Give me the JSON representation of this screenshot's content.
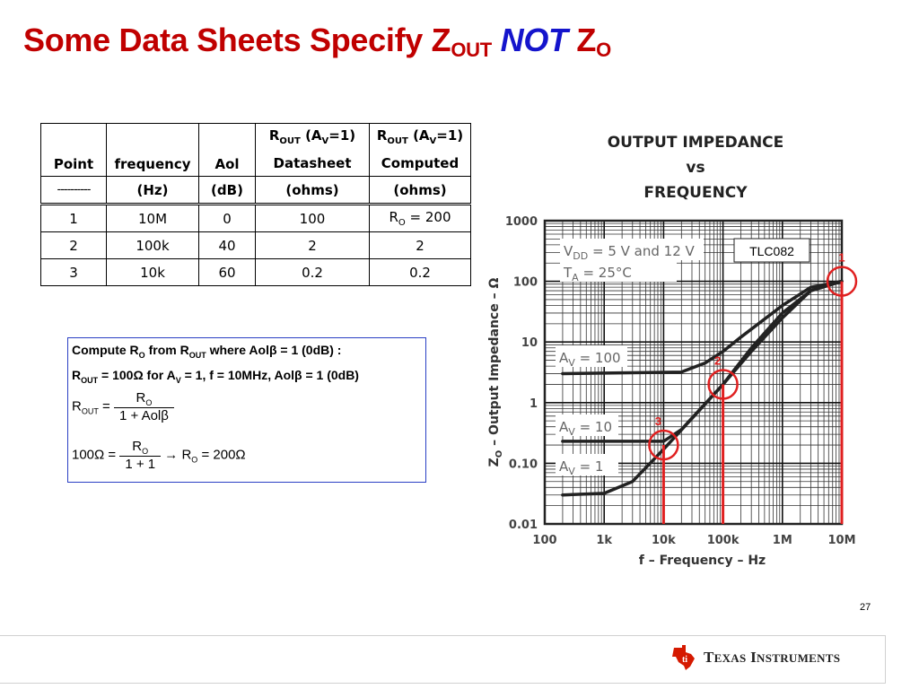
{
  "slide": {
    "title_prefix": "Some Data Sheets Specify Z",
    "title_sub1": "OUT",
    "title_not": "NOT",
    "title_z": "Z",
    "title_sub2": "O",
    "page_number": "27",
    "logo_text": "Texas Instruments",
    "colors": {
      "title": "#c00000",
      "not": "#1414cc",
      "marker": "#e02020",
      "box_border": "#2a3fc4"
    }
  },
  "table": {
    "headers": {
      "point": "Point",
      "frequency": "frequency",
      "aol": "Aol",
      "rout_ds_line1": "R",
      "rout_ds_sub": "OUT",
      "rout_ds_av": " (A",
      "rout_ds_av_sub": "V",
      "rout_ds_av_end": "=1)",
      "rout_ds_line2": "Datasheet",
      "rout_comp_line2": "Computed",
      "dashes": "----------",
      "unit_freq": "(Hz)",
      "unit_aol": "(dB)",
      "unit_ds": "(ohms)",
      "unit_comp": "(ohms)"
    },
    "rows": [
      {
        "point": "1",
        "frequency": "10M",
        "aol": "0",
        "datasheet": "100",
        "computed_r": "R",
        "computed_sub": "O",
        "computed_rest": " = 200"
      },
      {
        "point": "2",
        "frequency": "100k",
        "aol": "40",
        "datasheet": "2",
        "computed": "2"
      },
      {
        "point": "3",
        "frequency": "10k",
        "aol": "60",
        "datasheet": "0.2",
        "computed": "0.2"
      }
    ]
  },
  "calc": {
    "line1_a": "Compute R",
    "line1_a_sub": "O",
    "line1_b": " from R",
    "line1_b_sub": "OUT",
    "line1_c": " where Aolβ = 1 (0dB) :",
    "line2_a": "R",
    "line2_a_sub": "OUT",
    "line2_b": " = 100Ω for A",
    "line2_b_sub": "V",
    "line2_c": " = 1, f = 10MHz, Aolβ = 1 (0dB)",
    "eq1_lhs": "R",
    "eq1_lhs_sub": "OUT",
    "eq1_eq": " = ",
    "eq1_num": "R",
    "eq1_num_sub": "O",
    "eq1_den": "1 + Aolβ",
    "eq2_lhs": "100Ω = ",
    "eq2_num": "R",
    "eq2_num_sub": "O",
    "eq2_den": "1 + 1",
    "eq2_rhs_a": " → R",
    "eq2_rhs_sub": "O",
    "eq2_rhs_b": " = 200Ω"
  },
  "chart_title": {
    "line1": "OUTPUT IMPEDANCE",
    "line2": "vs",
    "line3": "FREQUENCY"
  },
  "chart_data": {
    "type": "line",
    "title": "OUTPUT IMPEDANCE vs FREQUENCY",
    "xlabel": "f – Frequency – Hz",
    "ylabel": "Z",
    "ylabel_sub": "O",
    "ylabel_rest": " – Output Impedance – Ω",
    "x_scale": "log",
    "y_scale": "log",
    "xlim": [
      100,
      10000000
    ],
    "ylim": [
      0.01,
      1000
    ],
    "x_ticks": [
      100,
      1000,
      10000,
      100000,
      1000000,
      10000000
    ],
    "x_tick_labels": [
      "100",
      "1k",
      "10k",
      "100k",
      "1M",
      "10M"
    ],
    "y_ticks": [
      0.01,
      0.1,
      1,
      10,
      100,
      1000
    ],
    "y_tick_labels": [
      "0.01",
      "0.10",
      "1",
      "10",
      "100",
      "1000"
    ],
    "grid": true,
    "series": [
      {
        "name": "AV = 100",
        "points": [
          [
            200,
            3
          ],
          [
            20000,
            3.2
          ],
          [
            50000,
            4.5
          ],
          [
            100000,
            7
          ],
          [
            200000,
            12
          ],
          [
            1000000,
            40
          ],
          [
            3000000,
            80
          ],
          [
            10000000,
            100
          ]
        ]
      },
      {
        "name": "AV = 10",
        "points": [
          [
            200,
            0.23
          ],
          [
            10000,
            0.23
          ],
          [
            20000,
            0.36
          ],
          [
            100000,
            2
          ],
          [
            300000,
            8
          ],
          [
            1000000,
            30
          ],
          [
            3000000,
            70
          ],
          [
            10000000,
            100
          ]
        ]
      },
      {
        "name": "AV = 1",
        "points": [
          [
            200,
            0.03
          ],
          [
            1000,
            0.032
          ],
          [
            3000,
            0.05
          ],
          [
            10000,
            0.17
          ],
          [
            30000,
            0.55
          ],
          [
            100000,
            2
          ],
          [
            300000,
            7
          ],
          [
            1000000,
            25
          ],
          [
            3000000,
            70
          ],
          [
            10000000,
            100
          ]
        ]
      }
    ],
    "annotations": {
      "conditions_line1_a": "V",
      "conditions_line1_sub": "DD",
      "conditions_line1_b": " = 5 V and 12 V",
      "conditions_line2_a": "T",
      "conditions_line2_sub": "A",
      "conditions_line2_b": " = 25°C",
      "device": "TLC082",
      "label_av100": "A",
      "label_av100_sub": "V",
      "label_av100_rest": " = 100",
      "label_av10": "A",
      "label_av10_sub": "V",
      "label_av10_rest": " = 10",
      "label_av1": "A",
      "label_av1_sub": "V",
      "label_av1_rest": " = 1"
    },
    "markers": [
      {
        "label": "1",
        "x": 10000000,
        "y": 100
      },
      {
        "label": "2",
        "x": 100000,
        "y": 2
      },
      {
        "label": "3",
        "x": 10000,
        "y": 0.2
      }
    ]
  }
}
